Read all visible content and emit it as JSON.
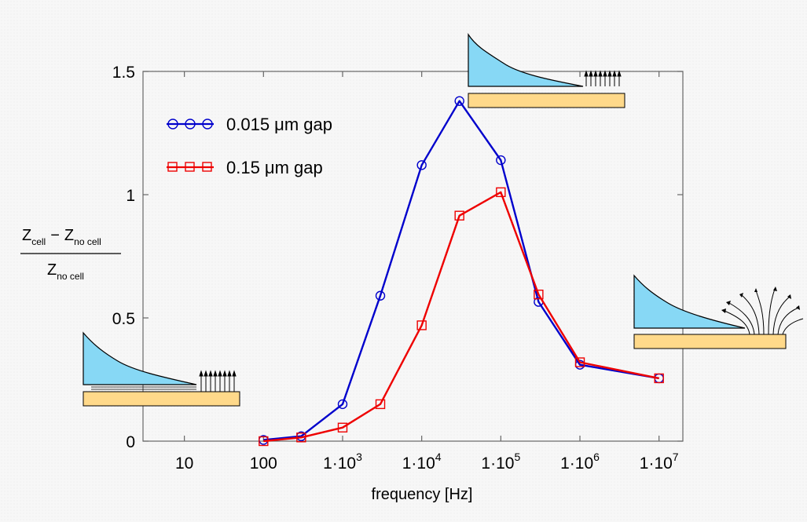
{
  "chart_data": {
    "type": "line",
    "x_scale": "log",
    "xlabel": "frequency [Hz]",
    "ylabel": {
      "numerator_left": "Z",
      "numerator_left_sub": "cell",
      "numerator_op": "−",
      "numerator_right": "Z",
      "numerator_right_sub": "no cell",
      "denominator": "Z",
      "denominator_sub": "no cell"
    },
    "xlim": [
      3,
      20000000
    ],
    "ylim": [
      0,
      1.5
    ],
    "x_ticks": [
      {
        "value": 10,
        "label": "10"
      },
      {
        "value": 100,
        "label": "100"
      },
      {
        "value": 1000,
        "mant": "1·10",
        "exp": "3"
      },
      {
        "value": 10000,
        "mant": "1·10",
        "exp": "4"
      },
      {
        "value": 100000,
        "mant": "1·10",
        "exp": "5"
      },
      {
        "value": 1000000,
        "mant": "1·10",
        "exp": "6"
      },
      {
        "value": 10000000,
        "mant": "1·10",
        "exp": "7"
      }
    ],
    "y_ticks": [
      {
        "value": 0,
        "label": "0"
      },
      {
        "value": 0.5,
        "label": "0.5"
      },
      {
        "value": 1,
        "label": "1"
      },
      {
        "value": 1.5,
        "label": "1.5"
      }
    ],
    "legend_position": "top-left",
    "series": [
      {
        "name": "0.015 μm gap",
        "color": "#0000cc",
        "marker": "circle",
        "x": [
          100,
          300,
          1000,
          3000,
          10000,
          30000,
          100000,
          300000,
          1000000,
          10000000
        ],
        "y": [
          0.005,
          0.02,
          0.15,
          0.59,
          1.12,
          1.38,
          1.14,
          0.565,
          0.31,
          0.255
        ]
      },
      {
        "name": "0.15 μm gap",
        "color": "#ee0000",
        "marker": "square",
        "x": [
          100,
          300,
          1000,
          3000,
          10000,
          30000,
          100000,
          300000,
          1000000,
          10000000
        ],
        "y": [
          0.0,
          0.015,
          0.055,
          0.15,
          0.47,
          0.915,
          1.01,
          0.595,
          0.32,
          0.255
        ]
      }
    ]
  },
  "illustrations": {
    "cell_color": "#87d8f5",
    "substrate_color": "#ffd98a",
    "field_line_color": "#000000"
  }
}
